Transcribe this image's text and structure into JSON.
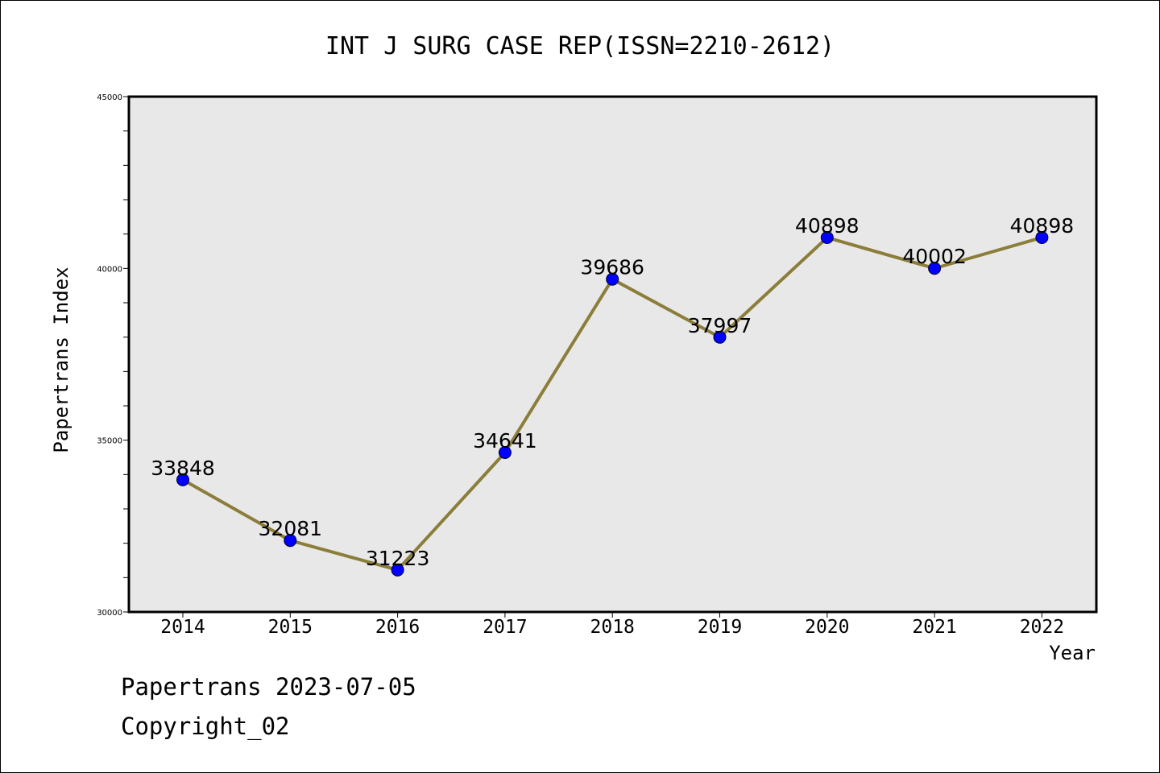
{
  "chart_data": {
    "type": "line",
    "title": "INT J SURG CASE REP(ISSN=2210-2612)",
    "xlabel": "Year",
    "ylabel": "Papertrans Index",
    "categories": [
      "2014",
      "2015",
      "2016",
      "2017",
      "2018",
      "2019",
      "2020",
      "2021",
      "2022"
    ],
    "values": [
      33848,
      32081,
      31223,
      34641,
      39686,
      37997,
      40898,
      40002,
      40898
    ],
    "data_labels": [
      "33848",
      "32081",
      "31223",
      "34641",
      "39686",
      "37997",
      "40898",
      "40002",
      "40898"
    ],
    "ylim": [
      30000,
      45000
    ],
    "y_ticks": [
      "30000",
      "35000",
      "40000",
      "45000"
    ],
    "grid": false,
    "colors": {
      "plot_background": "#e8e8e8",
      "line": "#8b7d3a",
      "marker": "#0000ff"
    }
  },
  "footer": {
    "line1": "Papertrans 2023-07-05",
    "line2": "Copyright_02"
  }
}
